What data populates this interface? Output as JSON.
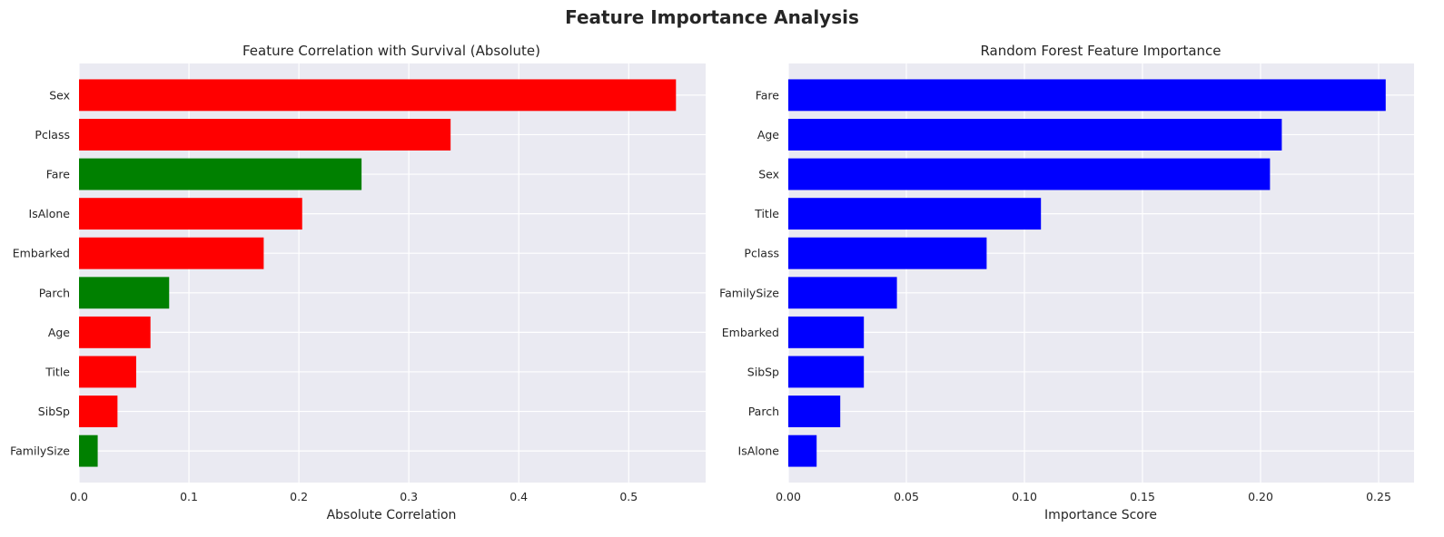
{
  "figure": {
    "suptitle": "Feature Importance Analysis"
  },
  "chart_data": [
    {
      "type": "bar",
      "orientation": "horizontal",
      "title": "Feature Correlation with Survival (Absolute)",
      "xlabel": "Absolute Correlation",
      "ylabel": "",
      "categories": [
        "Sex",
        "Pclass",
        "Fare",
        "IsAlone",
        "Embarked",
        "Parch",
        "Age",
        "Title",
        "SibSp",
        "FamilySize"
      ],
      "values": [
        0.543,
        0.338,
        0.257,
        0.203,
        0.168,
        0.082,
        0.065,
        0.052,
        0.035,
        0.017
      ],
      "colors": [
        "#ff0000",
        "#ff0000",
        "#008000",
        "#ff0000",
        "#ff0000",
        "#008000",
        "#ff0000",
        "#ff0000",
        "#ff0000",
        "#008000"
      ],
      "xlim": [
        0,
        0.57
      ],
      "xticks": [
        0.0,
        0.1,
        0.2,
        0.3,
        0.4,
        0.5
      ],
      "xtick_labels": [
        "0.0",
        "0.1",
        "0.2",
        "0.3",
        "0.4",
        "0.5"
      ],
      "grid": true
    },
    {
      "type": "bar",
      "orientation": "horizontal",
      "title": "Random Forest Feature Importance",
      "xlabel": "Importance Score",
      "ylabel": "",
      "categories": [
        "Fare",
        "Age",
        "Sex",
        "Title",
        "Pclass",
        "FamilySize",
        "Embarked",
        "SibSp",
        "Parch",
        "IsAlone"
      ],
      "values": [
        0.253,
        0.209,
        0.204,
        0.107,
        0.084,
        0.046,
        0.032,
        0.032,
        0.022,
        0.012
      ],
      "colors": [
        "#0000ff",
        "#0000ff",
        "#0000ff",
        "#0000ff",
        "#0000ff",
        "#0000ff",
        "#0000ff",
        "#0000ff",
        "#0000ff",
        "#0000ff"
      ],
      "xlim": [
        0,
        0.265
      ],
      "xticks": [
        0.0,
        0.05,
        0.1,
        0.15,
        0.2,
        0.25
      ],
      "xtick_labels": [
        "0.00",
        "0.05",
        "0.10",
        "0.15",
        "0.20",
        "0.25"
      ],
      "grid": true
    }
  ],
  "style": {
    "axes_background": "#eaeaf2",
    "grid_color": "#ffffff",
    "text_color": "#262626"
  }
}
